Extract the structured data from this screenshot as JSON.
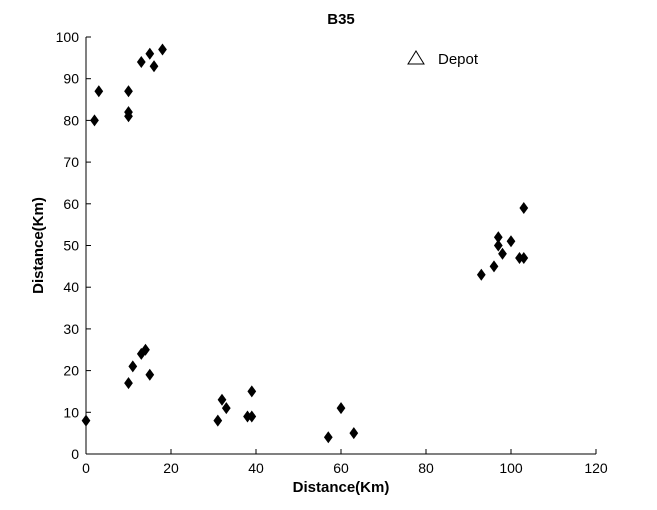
{
  "chart_data": {
    "type": "scatter",
    "title": "B35",
    "xlabel": "Distance(Km)",
    "ylabel": "Distance(Km)",
    "xlim": [
      0,
      120
    ],
    "ylim": [
      0,
      100
    ],
    "xticks": [
      0,
      20,
      40,
      60,
      80,
      100,
      120
    ],
    "yticks": [
      0,
      10,
      20,
      30,
      40,
      50,
      60,
      70,
      80,
      90,
      100
    ],
    "grid": false,
    "legend_position": "top-right",
    "legend": [
      {
        "label": "Depot",
        "marker": "triangle-open"
      }
    ],
    "series": [
      {
        "marker": "diamond-filled",
        "color": "#000000",
        "points": [
          {
            "x": 2,
            "y": 80
          },
          {
            "x": 3,
            "y": 87
          },
          {
            "x": 10,
            "y": 87
          },
          {
            "x": 10,
            "y": 82
          },
          {
            "x": 10,
            "y": 81
          },
          {
            "x": 13,
            "y": 94
          },
          {
            "x": 15,
            "y": 96
          },
          {
            "x": 16,
            "y": 93
          },
          {
            "x": 18,
            "y": 97
          },
          {
            "x": 0,
            "y": 8
          },
          {
            "x": 10,
            "y": 17
          },
          {
            "x": 11,
            "y": 21
          },
          {
            "x": 13,
            "y": 24
          },
          {
            "x": 14,
            "y": 25
          },
          {
            "x": 15,
            "y": 19
          },
          {
            "x": 31,
            "y": 8
          },
          {
            "x": 32,
            "y": 13
          },
          {
            "x": 33,
            "y": 11
          },
          {
            "x": 38,
            "y": 9
          },
          {
            "x": 39,
            "y": 9
          },
          {
            "x": 39,
            "y": 15
          },
          {
            "x": 57,
            "y": 4
          },
          {
            "x": 60,
            "y": 11
          },
          {
            "x": 63,
            "y": 5
          },
          {
            "x": 93,
            "y": 43
          },
          {
            "x": 96,
            "y": 45
          },
          {
            "x": 97,
            "y": 50
          },
          {
            "x": 97,
            "y": 52
          },
          {
            "x": 98,
            "y": 48
          },
          {
            "x": 100,
            "y": 51
          },
          {
            "x": 102,
            "y": 47
          },
          {
            "x": 103,
            "y": 47
          },
          {
            "x": 103,
            "y": 59
          }
        ]
      }
    ]
  }
}
